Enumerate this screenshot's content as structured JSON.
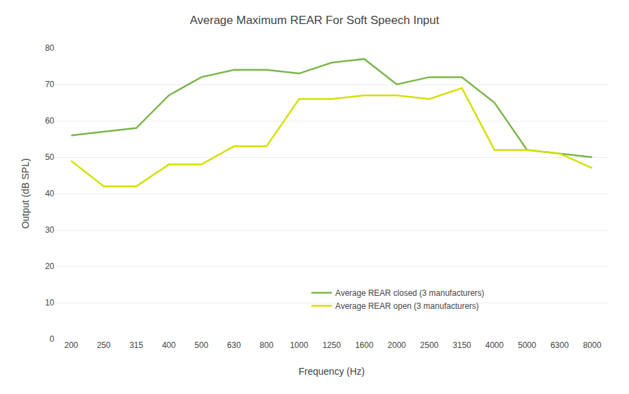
{
  "chart_data": {
    "type": "line",
    "title": "Average Maximum REAR For Soft Speech Input",
    "xlabel": "Frequency (Hz)",
    "ylabel": "Output (dB SPL)",
    "categories": [
      "200",
      "250",
      "315",
      "400",
      "500",
      "630",
      "800",
      "1000",
      "1250",
      "1600",
      "2000",
      "2500",
      "3150",
      "4000",
      "5000",
      "6300",
      "8000"
    ],
    "series": [
      {
        "name": "Average REAR closed (3 manufacturers)",
        "color": "#7ab648",
        "values": [
          56,
          57,
          58,
          67,
          72,
          74,
          74,
          73,
          76,
          77,
          70,
          72,
          72,
          65,
          52,
          51,
          50
        ]
      },
      {
        "name": "Average REAR open (3 manufacturers)",
        "color": "#d4e000",
        "values": [
          49,
          42,
          42,
          48,
          48,
          53,
          53,
          66,
          66,
          67,
          67,
          66,
          69,
          52,
          52,
          51,
          47
        ]
      }
    ],
    "ylim": [
      0,
      80
    ],
    "yticks": [
      0,
      10,
      20,
      30,
      40,
      50,
      60,
      70,
      80
    ],
    "grid": true,
    "legend": "lower center"
  }
}
